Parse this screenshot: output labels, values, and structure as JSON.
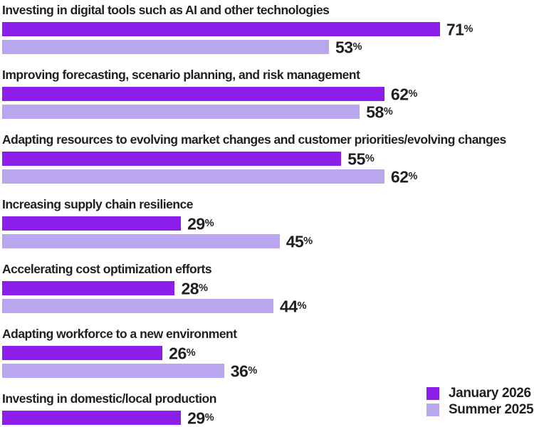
{
  "chart_data": {
    "type": "bar",
    "orientation": "horizontal",
    "title": "",
    "categories": [
      "Investing in digital tools such as AI and other technologies",
      "Improving forecasting, scenario planning, and risk management",
      "Adapting resources to evolving market changes and customer priorities/evolving changes",
      "Increasing supply chain resilience",
      "Accelerating cost optimization efforts",
      "Adapting workforce to a new environment",
      "Investing in domestic/local production"
    ],
    "series": [
      {
        "name": "January 2026",
        "color": "#8b1fe9",
        "values": [
          71,
          62,
          55,
          29,
          28,
          26,
          29
        ]
      },
      {
        "name": "Summer 2025",
        "color": "#b9a6ef",
        "values": [
          53,
          58,
          62,
          45,
          44,
          36,
          null
        ]
      }
    ],
    "value_suffix": "%",
    "xlim": [
      0,
      86
    ],
    "grid": false,
    "legend_position": "bottom-right"
  },
  "legend": {
    "items": [
      {
        "label": "January 2026",
        "color": "#8b1fe9"
      },
      {
        "label": "Summer 2025",
        "color": "#b9a6ef"
      }
    ]
  },
  "colors": {
    "background": "#ffffff",
    "text": "#231f20",
    "january_2026": "#8b1fe9",
    "summer_2025": "#b9a6ef"
  }
}
